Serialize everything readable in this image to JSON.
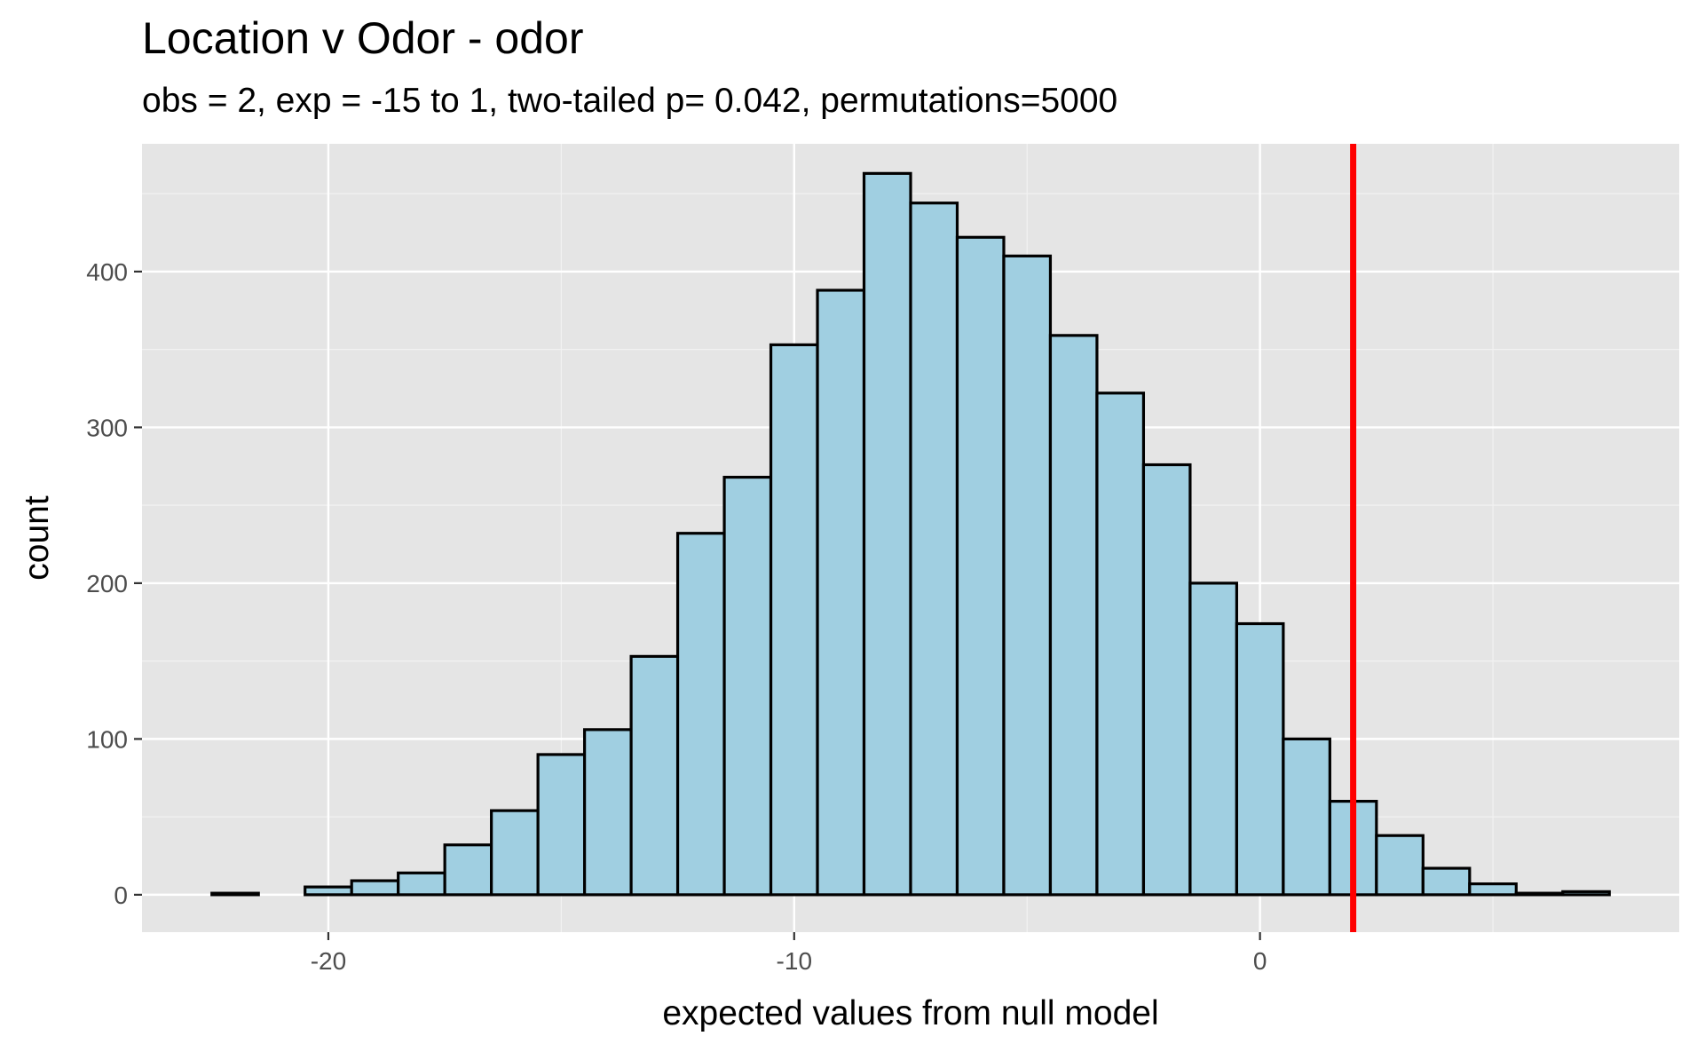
{
  "chart_data": {
    "type": "bar",
    "title": "Location v Odor - odor",
    "subtitle": "obs = 2, exp = -15 to 1, two-tailed p= 0.042, permutations=5000",
    "xlabel": "expected values from null model",
    "ylabel": "count",
    "xlim": [
      -24,
      9
    ],
    "ylim": [
      -24,
      482
    ],
    "x_ticks": [
      -20,
      -10,
      0
    ],
    "x_tick_labels": [
      "-20",
      "-10",
      "0"
    ],
    "y_ticks": [
      0,
      100,
      200,
      300,
      400
    ],
    "y_tick_labels": [
      "0",
      "100",
      "200",
      "300",
      "400"
    ],
    "bin_width": 1,
    "bins": [
      {
        "x": -22,
        "count": 1
      },
      {
        "x": -21,
        "count": 0
      },
      {
        "x": -20,
        "count": 5
      },
      {
        "x": -19,
        "count": 9
      },
      {
        "x": -18,
        "count": 14
      },
      {
        "x": -17,
        "count": 32
      },
      {
        "x": -16,
        "count": 54
      },
      {
        "x": -15,
        "count": 90
      },
      {
        "x": -14,
        "count": 106
      },
      {
        "x": -13,
        "count": 153
      },
      {
        "x": -12,
        "count": 232
      },
      {
        "x": -11,
        "count": 268
      },
      {
        "x": -10,
        "count": 353
      },
      {
        "x": -9,
        "count": 388
      },
      {
        "x": -8,
        "count": 463
      },
      {
        "x": -7,
        "count": 444
      },
      {
        "x": -6,
        "count": 422
      },
      {
        "x": -5,
        "count": 410
      },
      {
        "x": -4,
        "count": 359
      },
      {
        "x": -3,
        "count": 322
      },
      {
        "x": -2,
        "count": 276
      },
      {
        "x": -1,
        "count": 200
      },
      {
        "x": 0,
        "count": 174
      },
      {
        "x": 1,
        "count": 100
      },
      {
        "x": 2,
        "count": 60
      },
      {
        "x": 3,
        "count": 38
      },
      {
        "x": 4,
        "count": 17
      },
      {
        "x": 5,
        "count": 7
      },
      {
        "x": 6,
        "count": 1
      },
      {
        "x": 7,
        "count": 2
      }
    ],
    "observed_line": {
      "x": 2,
      "color": "#ff0000"
    },
    "bar_fill": "#a0cfe1",
    "bar_outline": "#000000",
    "panel_background": "#e5e5e5",
    "grid": true
  }
}
